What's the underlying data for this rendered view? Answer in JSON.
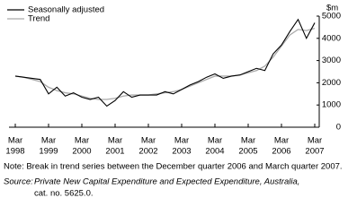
{
  "chart_data": {
    "type": "line",
    "unit_label": "$m",
    "categories": [
      [
        "Mar",
        "1998"
      ],
      null,
      null,
      null,
      [
        "Mar",
        "1999"
      ],
      null,
      null,
      null,
      [
        "Mar",
        "2000"
      ],
      null,
      null,
      null,
      [
        "Mar",
        "2001"
      ],
      null,
      null,
      null,
      [
        "Mar",
        "2002"
      ],
      null,
      null,
      null,
      [
        "Mar",
        "2003"
      ],
      null,
      null,
      null,
      [
        "Mar",
        "2004"
      ],
      null,
      null,
      null,
      [
        "Mar",
        "2005"
      ],
      null,
      null,
      null,
      [
        "Mar",
        "2006"
      ],
      null,
      null,
      null,
      [
        "Mar",
        "2007"
      ]
    ],
    "series": [
      {
        "name": "Seasonally adjusted",
        "color": "#000000",
        "values": [
          2300,
          2250,
          2200,
          2150,
          1500,
          1800,
          1400,
          1550,
          1350,
          1250,
          1350,
          950,
          1200,
          1600,
          1350,
          1450,
          1450,
          1450,
          1600,
          1500,
          1700,
          1900,
          2050,
          2250,
          2400,
          2200,
          2300,
          2350,
          2500,
          2650,
          2550,
          3300,
          3700,
          4300,
          4850,
          4000,
          4700
        ]
      },
      {
        "name": "Trend",
        "color": "#aaaaaa",
        "values": [
          2300,
          2250,
          2150,
          2050,
          1800,
          1650,
          1550,
          1500,
          1400,
          1300,
          1250,
          1250,
          1300,
          1400,
          1450,
          1450,
          1450,
          1500,
          1550,
          1600,
          1700,
          1850,
          2000,
          2150,
          2300,
          2300,
          2300,
          2350,
          2450,
          2550,
          2750,
          3150,
          3650,
          4150,
          4400,
          4350,
          4450
        ]
      }
    ],
    "ylim": [
      0,
      5000
    ],
    "yticks": [
      0,
      1000,
      2000,
      3000,
      4000,
      5000
    ],
    "note": "Note: Break in trend series between the December quarter 2006 and March quarter 2007.",
    "source_label": "Source:",
    "source_title": "Private New Capital Expenditure and Expected Expenditure, Australia,",
    "source_catalogue": "cat. no. 5625.0."
  }
}
